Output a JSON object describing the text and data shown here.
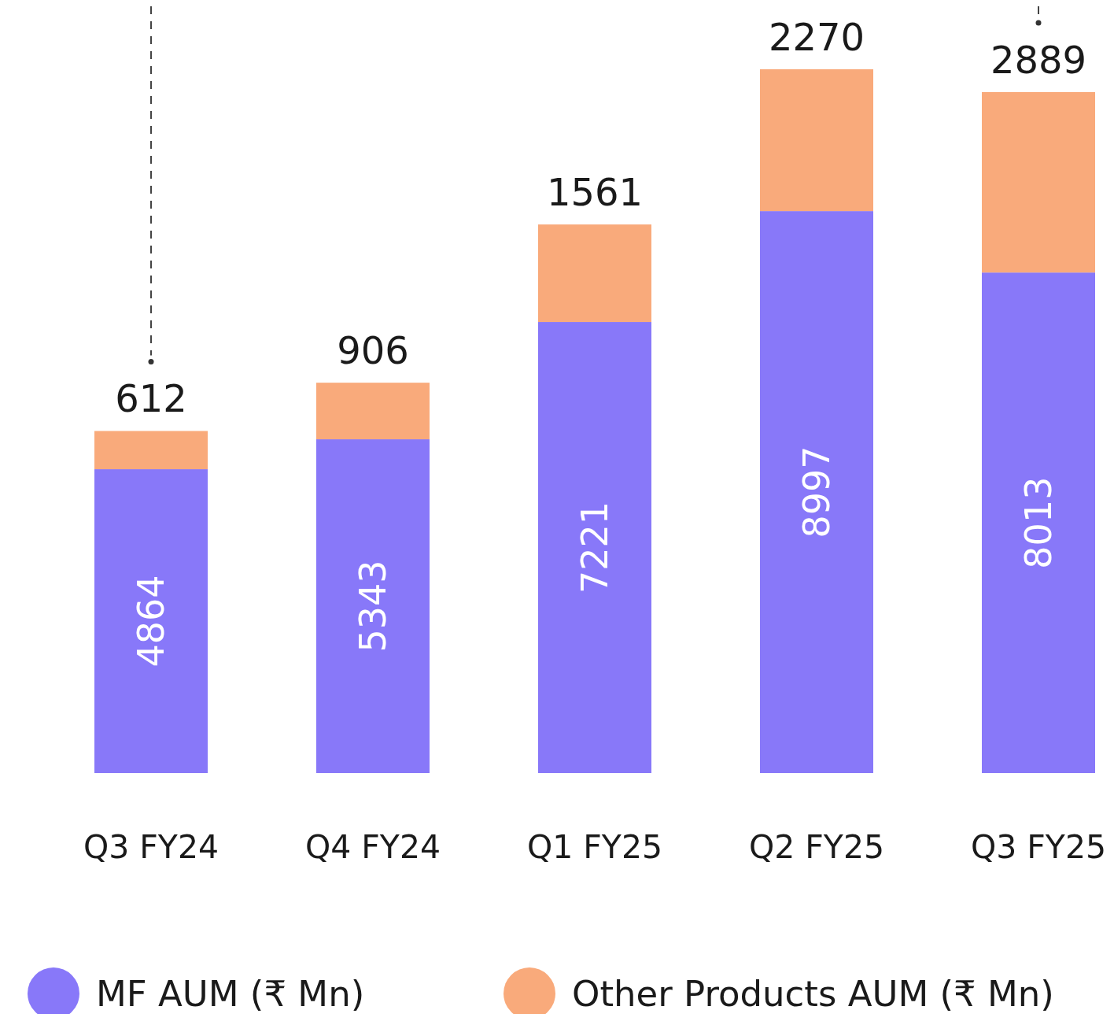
{
  "chart_data": {
    "type": "bar",
    "stacked": true,
    "categories": [
      "Q3 FY24",
      "Q4 FY24",
      "Q1 FY25",
      "Q2 FY25",
      "Q3 FY25"
    ],
    "series": [
      {
        "name": "MF AUM (₹ Mn)",
        "color": "#8878f9",
        "values": [
          4864,
          5343,
          7221,
          8997,
          8013
        ]
      },
      {
        "name": "Other Products AUM (₹ Mn)",
        "color": "#f9aa7b",
        "values": [
          612,
          906,
          1561,
          2270,
          2889
        ]
      }
    ],
    "data_labels": true,
    "legend": "bottom"
  }
}
